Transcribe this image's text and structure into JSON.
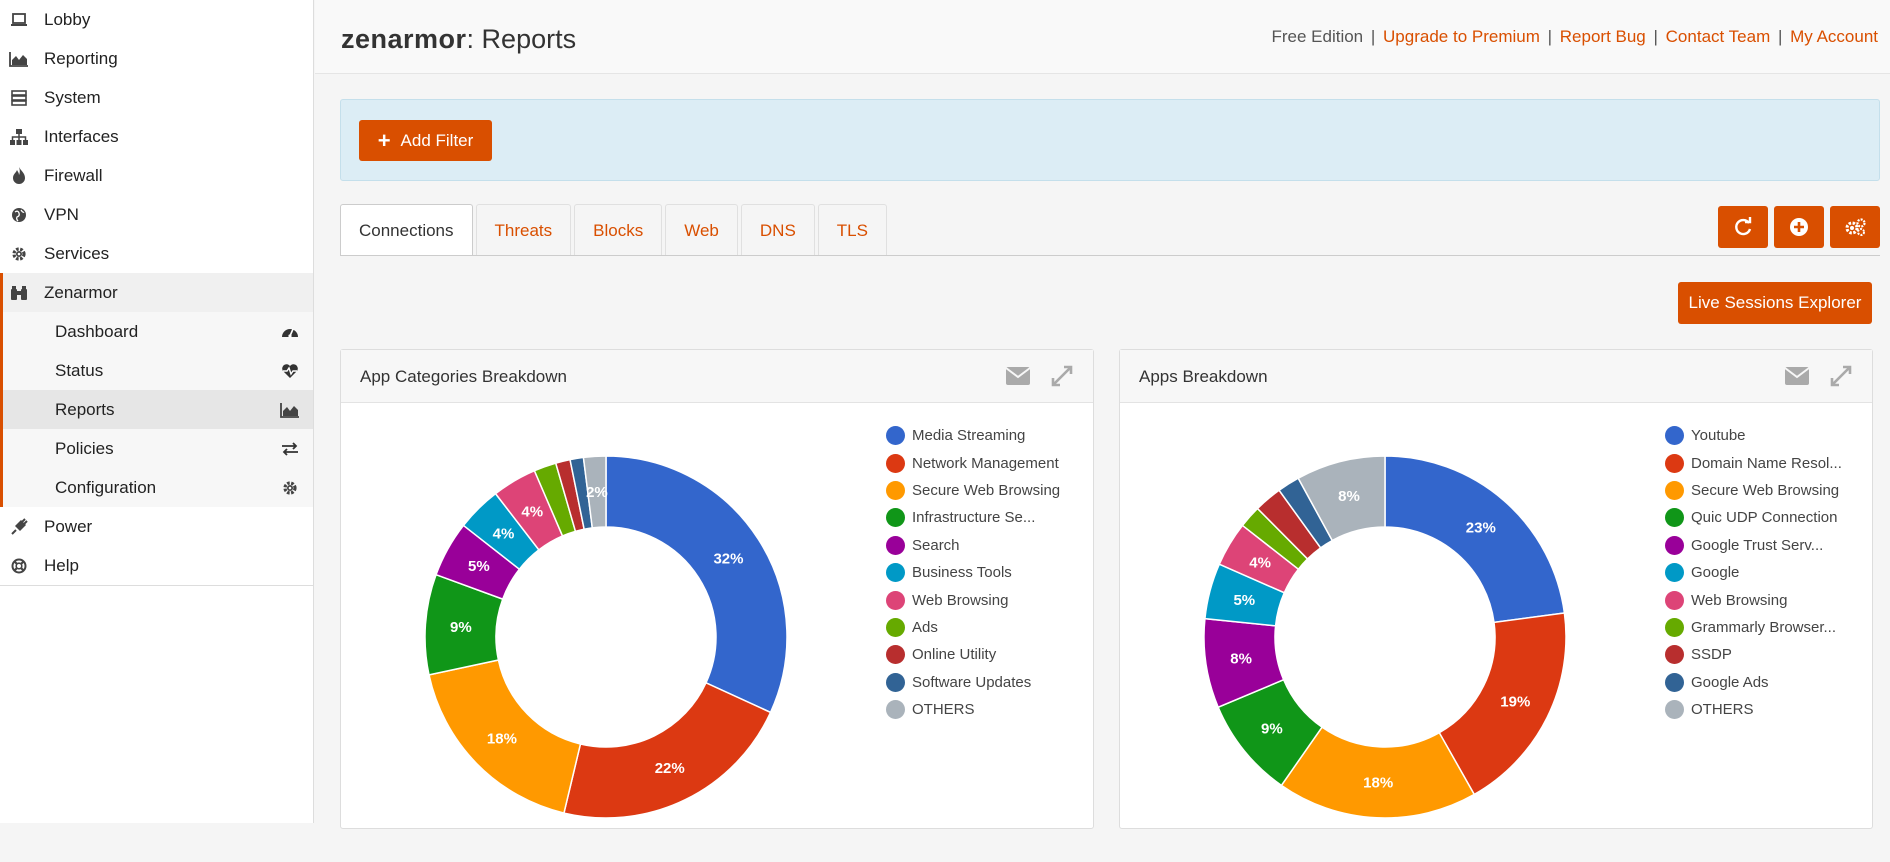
{
  "sidebar": {
    "items": [
      {
        "label": "Lobby",
        "icon": "laptop-icon"
      },
      {
        "label": "Reporting",
        "icon": "area-chart-icon"
      },
      {
        "label": "System",
        "icon": "server-icon"
      },
      {
        "label": "Interfaces",
        "icon": "sitemap-icon"
      },
      {
        "label": "Firewall",
        "icon": "fire-icon"
      },
      {
        "label": "VPN",
        "icon": "globe-icon"
      },
      {
        "label": "Services",
        "icon": "cog-icon"
      },
      {
        "label": "Zenarmor",
        "icon": "binoculars-icon"
      }
    ],
    "subitems": [
      {
        "label": "Dashboard",
        "icon": "dashboard-icon"
      },
      {
        "label": "Status",
        "icon": "heartbeat-icon"
      },
      {
        "label": "Reports",
        "icon": "area-chart-icon"
      },
      {
        "label": "Policies",
        "icon": "exchange-icon"
      },
      {
        "label": "Configuration",
        "icon": "cog-icon"
      }
    ],
    "bottom": [
      {
        "label": "Power",
        "icon": "plug-icon"
      },
      {
        "label": "Help",
        "icon": "life-ring-icon"
      }
    ]
  },
  "header": {
    "brand": "zenarmor",
    "title": ": Reports",
    "edition": "Free Edition",
    "links": [
      "Upgrade to Premium",
      "Report Bug",
      "Contact Team",
      "My Account"
    ],
    "separator": "|"
  },
  "filter": {
    "add_label": "Add Filter"
  },
  "tabs": [
    "Connections",
    "Threats",
    "Blocks",
    "Web",
    "DNS",
    "TLS"
  ],
  "toolbar": {
    "refresh_icon": "refresh-icon",
    "add_icon": "plus-circle-icon",
    "settings_icon": "cogs-icon",
    "live_sessions": "Live Sessions Explorer"
  },
  "chart_data": [
    {
      "type": "pie",
      "title": "App Categories Breakdown",
      "categories": [
        "Media Streaming",
        "Network Management",
        "Secure Web Browsing",
        "Infrastructure Se...",
        "Search",
        "Business Tools",
        "Web Browsing",
        "Ads",
        "Online Utility",
        "Software Updates",
        "OTHERS"
      ],
      "values": [
        32,
        22,
        18,
        9,
        5,
        4,
        4,
        2,
        1.3,
        1.2,
        2
      ],
      "labels": [
        "32%",
        "22%",
        "18%",
        "9%",
        "5%",
        "4%",
        "4%",
        "",
        "",
        "",
        "2%"
      ],
      "colors": [
        "#3366cc",
        "#dc3912",
        "#ff9900",
        "#109618",
        "#990099",
        "#0099c6",
        "#dd4477",
        "#66aa00",
        "#b82e2e",
        "#316395",
        "#aab3bb"
      ],
      "legend": "right"
    },
    {
      "type": "pie",
      "title": "Apps Breakdown",
      "categories": [
        "Youtube",
        "Domain Name Resol...",
        "Secure Web Browsing",
        "Quic UDP Connection",
        "Google Trust Serv...",
        "Google",
        "Web Browsing",
        "Grammarly Browser...",
        "SSDP",
        "Google Ads",
        "OTHERS"
      ],
      "values": [
        23,
        19,
        18,
        9,
        8,
        5,
        4,
        2,
        2.5,
        2,
        8
      ],
      "labels": [
        "23%",
        "19%",
        "18%",
        "9%",
        "8%",
        "5%",
        "4%",
        "",
        "",
        "",
        "8%"
      ],
      "colors": [
        "#3366cc",
        "#dc3912",
        "#ff9900",
        "#109618",
        "#990099",
        "#0099c6",
        "#dd4477",
        "#66aa00",
        "#b82e2e",
        "#316395",
        "#aab3bb"
      ],
      "legend": "right"
    }
  ]
}
